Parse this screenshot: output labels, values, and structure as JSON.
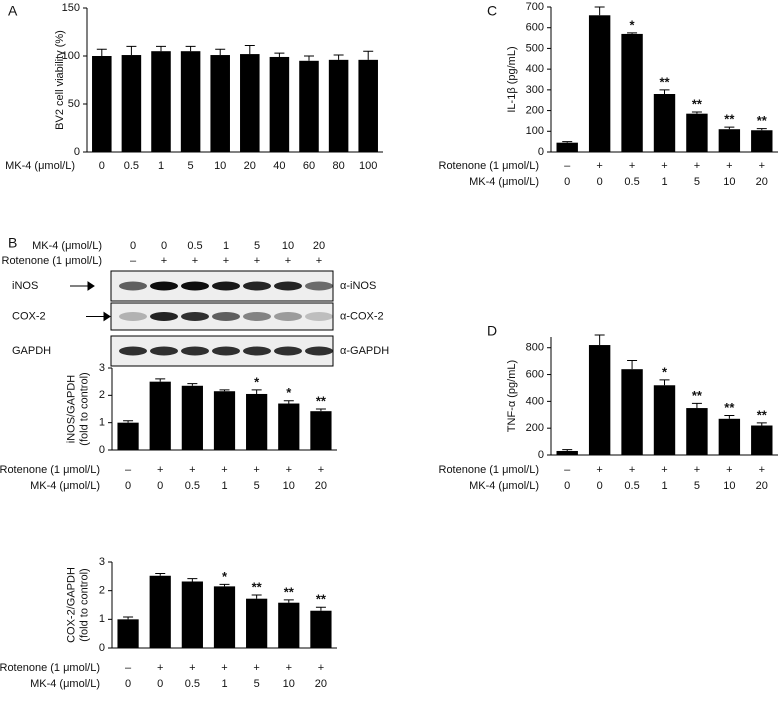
{
  "chart_data": [
    {
      "type": "bar",
      "panel": "A",
      "ylabel": [
        "BV2 cell viability (%)"
      ],
      "category_label": "MK-4 (μmol/L)",
      "categories": [
        "0",
        "0.5",
        "1",
        "5",
        "10",
        "20",
        "40",
        "60",
        "80",
        "100"
      ],
      "values": [
        100,
        101,
        105,
        105,
        101,
        102,
        99,
        95,
        96,
        96
      ],
      "errors": [
        7,
        9,
        5,
        5,
        6,
        9,
        4,
        5,
        5,
        9
      ],
      "ylim": [
        0,
        150
      ],
      "yticks": [
        0,
        50,
        100,
        150
      ],
      "color": "#000000"
    },
    {
      "type": "bar",
      "ylabel": [
        "iNOS/GAPDH",
        "(fold to control)"
      ],
      "category_label": "MK-4 (μmol/L)",
      "category_rows": [
        {
          "name": "Rotenone (1 μmol/L)",
          "labels": [
            "–",
            "+",
            "+",
            "+",
            "+",
            "+",
            "+"
          ]
        }
      ],
      "categories": [
        "0",
        "0",
        "0.5",
        "1",
        "5",
        "10",
        "20"
      ],
      "values": [
        1.0,
        2.5,
        2.35,
        2.15,
        2.05,
        1.7,
        1.42
      ],
      "errors": [
        0.07,
        0.1,
        0.08,
        0.05,
        0.15,
        0.1,
        0.08
      ],
      "annotations": [
        null,
        null,
        null,
        null,
        "*",
        "*",
        "**"
      ],
      "ylim": [
        0,
        3
      ],
      "yticks": [
        0,
        1,
        2,
        3
      ],
      "color": "#000000"
    },
    {
      "type": "bar",
      "ylabel": [
        "COX-2/GAPDH",
        "(fold to control)"
      ],
      "category_label": "MK-4 (μmol/L)",
      "category_rows": [
        {
          "name": "Rotenone (1 μmol/L)",
          "labels": [
            "–",
            "+",
            "+",
            "+",
            "+",
            "+",
            "+"
          ]
        }
      ],
      "categories": [
        "0",
        "0",
        "0.5",
        "1",
        "5",
        "10",
        "20"
      ],
      "values": [
        1.0,
        2.52,
        2.32,
        2.15,
        1.72,
        1.58,
        1.3
      ],
      "errors": [
        0.08,
        0.08,
        0.1,
        0.07,
        0.13,
        0.1,
        0.12
      ],
      "annotations": [
        null,
        null,
        null,
        "*",
        "**",
        "**",
        "**"
      ],
      "ylim": [
        0,
        3
      ],
      "yticks": [
        0,
        1,
        2,
        3
      ],
      "color": "#000000"
    },
    {
      "type": "bar",
      "panel": "C",
      "ylabel": [
        "IL-1β (pg/mL)"
      ],
      "category_label": "MK-4 (μmol/L)",
      "category_rows": [
        {
          "name": "Rotenone (1 μmol/L)",
          "labels": [
            "–",
            "+",
            "+",
            "+",
            "+",
            "+",
            "+"
          ]
        }
      ],
      "categories": [
        "0",
        "0",
        "0.5",
        "1",
        "5",
        "10",
        "20"
      ],
      "values": [
        45,
        660,
        570,
        280,
        185,
        110,
        105
      ],
      "errors": [
        5,
        40,
        5,
        20,
        8,
        10,
        8
      ],
      "annotations": [
        null,
        null,
        "*",
        "**",
        "**",
        "**",
        "**"
      ],
      "ylim": [
        0,
        700
      ],
      "yticks": [
        0,
        100,
        200,
        300,
        400,
        500,
        600,
        700
      ],
      "color": "#000000"
    },
    {
      "type": "bar",
      "panel": "D",
      "ylabel": [
        "TNF-α (pg/mL)"
      ],
      "category_label": "MK-4 (μmol/L)",
      "category_rows": [
        {
          "name": "Rotenone (1 μmol/L)",
          "labels": [
            "–",
            "+",
            "+",
            "+",
            "+",
            "+",
            "+"
          ]
        }
      ],
      "categories": [
        "0",
        "0",
        "0.5",
        "1",
        "5",
        "10",
        "20"
      ],
      "values": [
        30,
        820,
        640,
        520,
        350,
        270,
        220
      ],
      "errors": [
        10,
        75,
        65,
        40,
        35,
        25,
        20
      ],
      "annotations": [
        null,
        null,
        null,
        "*",
        "**",
        "**",
        "**"
      ],
      "ylim": [
        0,
        880
      ],
      "yticks": [
        0,
        200,
        400,
        600,
        800
      ],
      "color": "#000000"
    }
  ],
  "blot": {
    "panel": "B",
    "rows": [
      {
        "name": "MK-4 (μmol/L)",
        "labels": [
          "0",
          "0",
          "0.5",
          "1",
          "5",
          "10",
          "20"
        ]
      },
      {
        "name": "Rotenone (1 μmol/L)",
        "labels": [
          "–",
          "+",
          "+",
          "+",
          "+",
          "+",
          "+"
        ]
      }
    ],
    "bands": [
      {
        "protein": "iNOS",
        "antibody": "α-iNOS"
      },
      {
        "protein": "COX-2",
        "antibody": "α-COX-2"
      },
      {
        "protein": "GAPDH",
        "antibody": "α-GAPDH"
      }
    ]
  }
}
